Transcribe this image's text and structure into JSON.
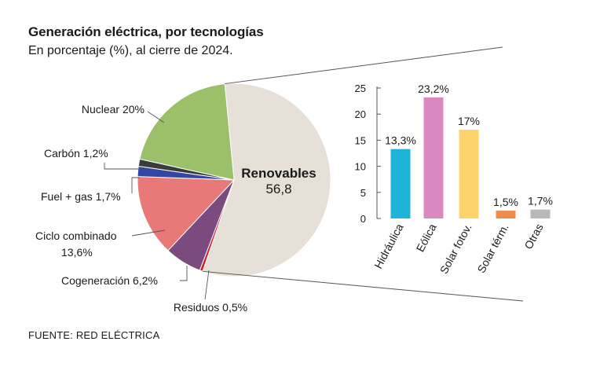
{
  "header": {
    "title": "Generación eléctrica, por tecnologías",
    "subtitle": "En porcentaje (%), al cierre de 2024."
  },
  "footer": {
    "source": "FUENTE: RED ELÉCTRICA"
  },
  "colors": {
    "renovables": "#e7e0d8",
    "residuos": "#d11f2a",
    "cogeneracion": "#7b4a7e",
    "ciclo_combinado": "#e97878",
    "fuel_gas": "#3346a3",
    "carbon": "#3b3b3b",
    "nuclear": "#9cc06a",
    "hidraulica": "#1fb3d9",
    "eolica": "#d989bf",
    "solar_fotov": "#fcd46b",
    "solar_term": "#f08c4b",
    "otras": "#b9b9b9",
    "axis": "#555555",
    "connector": "#555555"
  },
  "chart_data": [
    {
      "type": "pie",
      "title": "Generación eléctrica, por tecnologías",
      "unit": "%",
      "slices": [
        {
          "key": "renovables",
          "label": "Renovables",
          "value": 56.8,
          "label_text": "Renovables",
          "value_text": "56,8"
        },
        {
          "key": "residuos",
          "label": "Residuos",
          "value": 0.5,
          "label_text": "Residuos 0,5%"
        },
        {
          "key": "cogeneracion",
          "label": "Cogeneración",
          "value": 6.2,
          "label_text": "Cogeneración 6,2%"
        },
        {
          "key": "ciclo_combinado",
          "label": "Ciclo combinado",
          "value": 13.6,
          "label_text": "Ciclo combinado",
          "label_text_2": "13,6%"
        },
        {
          "key": "fuel_gas",
          "label": "Fuel + gas",
          "value": 1.7,
          "label_text": "Fuel + gas 1,7%"
        },
        {
          "key": "carbon",
          "label": "Carbón",
          "value": 1.2,
          "label_text": "Carbón 1,2%"
        },
        {
          "key": "nuclear",
          "label": "Nuclear",
          "value": 20,
          "label_text": "Nuclear 20%"
        }
      ]
    },
    {
      "type": "bar",
      "title": "Renovables",
      "categories": [
        "Hidráulica",
        "Eólica",
        "Solar fotov.",
        "Solar térm.",
        "Otras"
      ],
      "keys": [
        "hidraulica",
        "eolica",
        "solar_fotov",
        "solar_term",
        "otras"
      ],
      "values": [
        13.3,
        23.2,
        17,
        1.5,
        1.7
      ],
      "value_labels": [
        "13,3%",
        "23,2%",
        "17%",
        "1,5%",
        "1,7%"
      ],
      "ylim": [
        0,
        25
      ],
      "yticks": [
        0,
        5,
        10,
        15,
        20,
        25
      ],
      "xlabel": "",
      "ylabel": ""
    }
  ]
}
